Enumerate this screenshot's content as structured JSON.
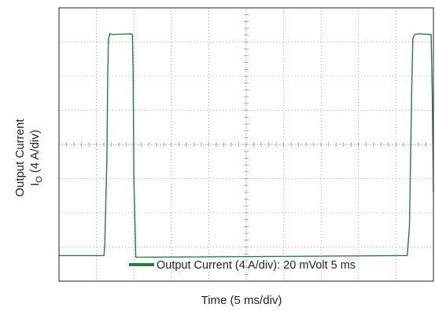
{
  "chart_data": {
    "type": "line",
    "xlabel": "Time (5 ms/div)",
    "ylabel_line1": "Output Current",
    "ylabel_symbol": "I",
    "ylabel_subscript": "O",
    "ylabel_unit": "(4 A/div)",
    "x_divisions": 10,
    "y_divisions": 8,
    "xlim": [
      0,
      10
    ],
    "ylim": [
      0,
      8
    ],
    "grid": true,
    "legend_position": "bottom",
    "colors": {
      "trace": "#2a7a48",
      "grid": "#9a9a9a",
      "frame": "#222222"
    },
    "series": [
      {
        "name": "Output Current (4 A/div): 20 mVolt  5 ms",
        "x": [
          0.0,
          1.2,
          1.22,
          1.28,
          1.3,
          1.32,
          1.36,
          1.4,
          1.92,
          1.96,
          1.98,
          2.0,
          2.05,
          9.3,
          9.36,
          9.42,
          9.45,
          9.5,
          9.6,
          9.94,
          9.97,
          10.0
        ],
        "y": [
          0.75,
          0.75,
          1.0,
          3.6,
          5.9,
          7.08,
          7.25,
          7.22,
          7.24,
          7.22,
          6.2,
          3.0,
          0.7,
          0.75,
          1.6,
          5.6,
          7.1,
          7.22,
          7.24,
          7.22,
          5.4,
          2.6
        ]
      }
    ]
  }
}
